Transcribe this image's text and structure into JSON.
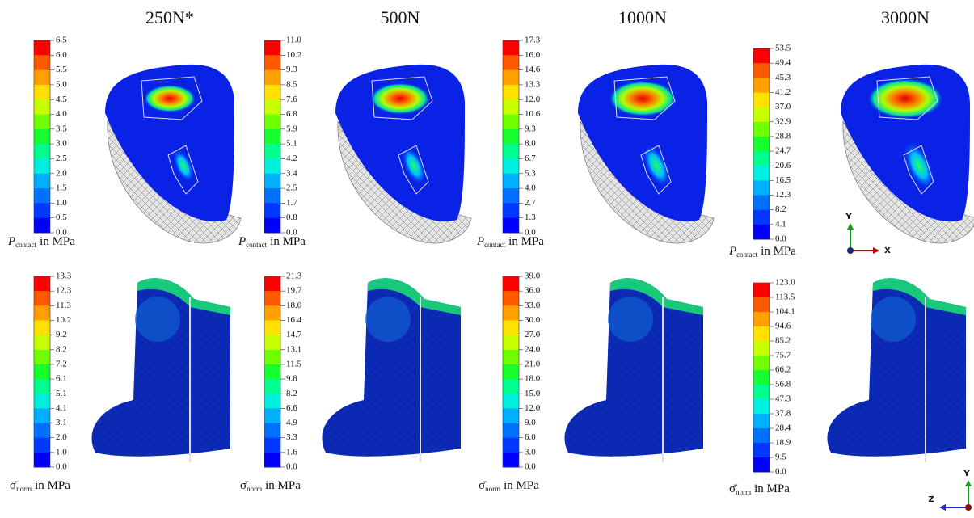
{
  "columns": [
    {
      "title": "250N*",
      "contact_scale": [
        "6.5",
        "6.0",
        "5.5",
        "5.0",
        "4.5",
        "4.0",
        "3.5",
        "3.0",
        "2.5",
        "2.0",
        "1.5",
        "1.0",
        "0.5",
        "0.0"
      ],
      "stress_scale": [
        "13.3",
        "12.3",
        "11.3",
        "10.2",
        "9.2",
        "8.2",
        "7.2",
        "6.1",
        "5.1",
        "4.1",
        "3.1",
        "2.0",
        "1.0",
        "0.0"
      ]
    },
    {
      "title": "500N",
      "contact_scale": [
        "11.0",
        "10.2",
        "9.3",
        "8.5",
        "7.6",
        "6.8",
        "5.9",
        "5.1",
        "4.2",
        "3.4",
        "2.5",
        "1.7",
        "0.8",
        "0.0"
      ],
      "stress_scale": [
        "21.3",
        "19.7",
        "18.0",
        "16.4",
        "14.7",
        "13.1",
        "11.5",
        "9.8",
        "8.2",
        "6.6",
        "4.9",
        "3.3",
        "1.6",
        "0.0"
      ]
    },
    {
      "title": "1000N",
      "contact_scale": [
        "17.3",
        "16.0",
        "14.6",
        "13.3",
        "12.0",
        "10.6",
        "9.3",
        "8.0",
        "6.7",
        "5.3",
        "4.0",
        "2.7",
        "1.3",
        "0.0"
      ],
      "stress_scale": [
        "39.0",
        "36.0",
        "33.0",
        "30.0",
        "27.0",
        "24.0",
        "21.0",
        "18.0",
        "15.0",
        "12.0",
        "9.0",
        "6.0",
        "3.0",
        "0.0"
      ]
    },
    {
      "title": "3000N",
      "contact_scale": [
        "53.5",
        "49.4",
        "45.3",
        "41.2",
        "37.0",
        "32.9",
        "28.8",
        "24.7",
        "20.6",
        "16.5",
        "12.3",
        "8.2",
        "4.1",
        "0.0"
      ],
      "stress_scale": [
        "123.0",
        "113.5",
        "104.1",
        "94.6",
        "85.2",
        "75.7",
        "66.2",
        "56.8",
        "47.3",
        "37.8",
        "28.4",
        "18.9",
        "9.5",
        "0.0"
      ]
    }
  ],
  "contact_label": {
    "symbol": "P",
    "subscript": "contact",
    "unit": "in MPa"
  },
  "stress_label": {
    "symbol": "σ̄",
    "subscript": "norm",
    "unit": "in MPa"
  },
  "triad_top": {
    "up": "Y",
    "side": "X"
  },
  "triad_bottom": {
    "up": "Y",
    "side": "Z"
  }
}
